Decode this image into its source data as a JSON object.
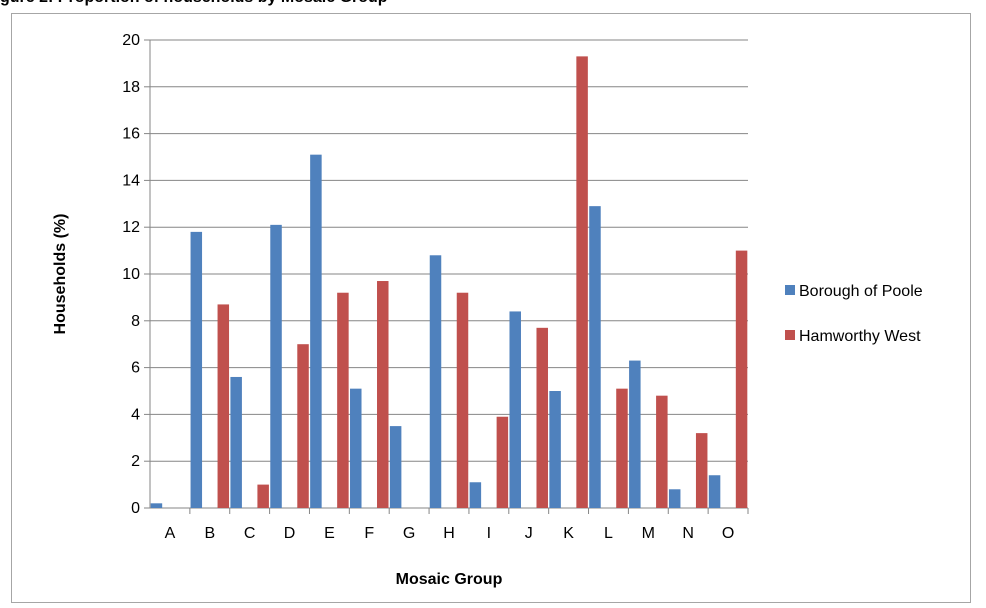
{
  "figure_title": "gure 2: Proportion of households by Mosaic Group",
  "chart_data": {
    "type": "bar",
    "categories": [
      "A",
      "B",
      "C",
      "D",
      "E",
      "F",
      "G",
      "H",
      "I",
      "J",
      "K",
      "L",
      "M",
      "N",
      "O"
    ],
    "series": [
      {
        "name": "Borough of Poole",
        "color": "#4f81bd",
        "values": [
          0.2,
          11.8,
          5.6,
          12.1,
          15.1,
          5.1,
          3.5,
          10.8,
          1.1,
          8.4,
          5.0,
          12.9,
          6.3,
          0.8,
          1.4
        ]
      },
      {
        "name": "Hamworthy West",
        "color": "#c0504d",
        "values": [
          0,
          8.7,
          1.0,
          7.0,
          9.2,
          9.7,
          0,
          9.2,
          3.9,
          7.7,
          19.3,
          5.1,
          4.8,
          3.2,
          11.0
        ]
      }
    ],
    "xlabel": "Mosaic Group",
    "ylabel": "Households (%)",
    "ylim": [
      0,
      20
    ],
    "yticks": [
      "0",
      "2",
      "4",
      "6",
      "8",
      "10",
      "12",
      "14",
      "16",
      "18",
      "20"
    ],
    "grid": true,
    "legend_position": "right"
  }
}
